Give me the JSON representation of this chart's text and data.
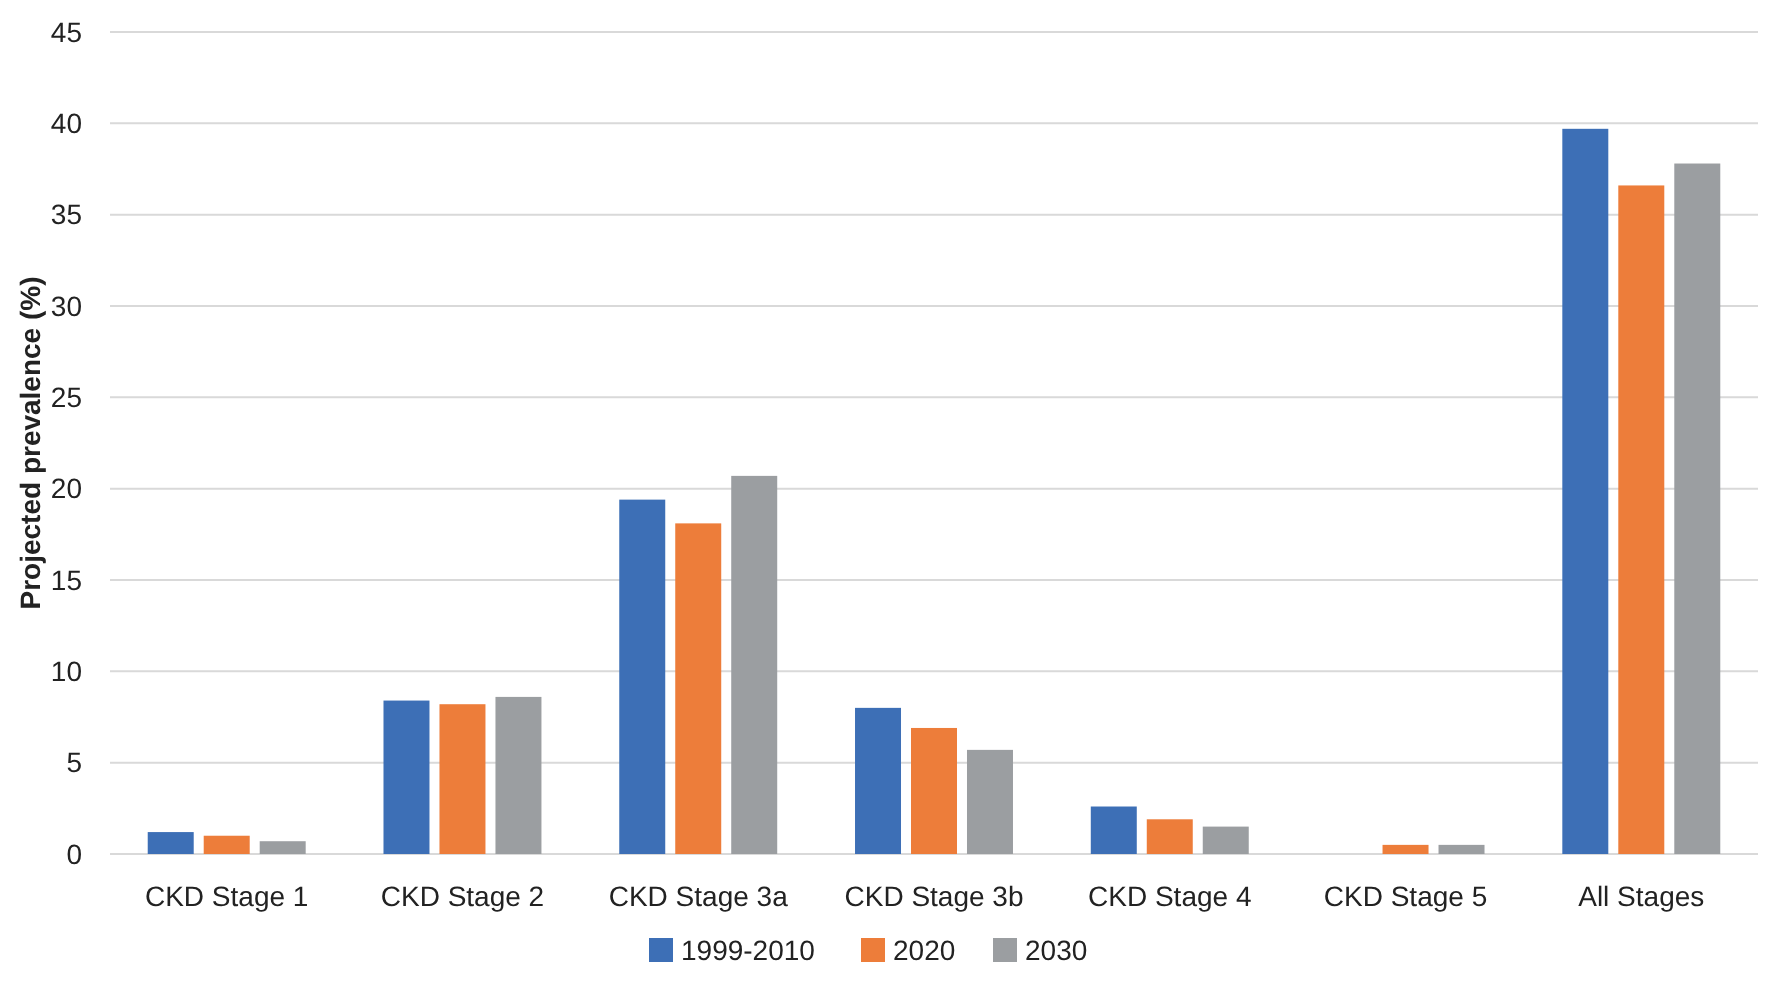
{
  "chart_data": {
    "type": "bar",
    "ylabel": "Projected prevalence (%)",
    "categories": [
      "CKD Stage 1",
      "CKD Stage 2",
      "CKD Stage 3a",
      "CKD Stage 3b",
      "CKD Stage 4",
      "CKD Stage 5",
      "All Stages"
    ],
    "series": [
      {
        "name": "1999-2010",
        "color": "#3d6fb6",
        "values": [
          1.2,
          8.4,
          19.4,
          8.0,
          2.6,
          null,
          39.7
        ]
      },
      {
        "name": "2020",
        "color": "#ed7d3a",
        "values": [
          1.0,
          8.2,
          18.1,
          6.9,
          1.9,
          0.5,
          36.6
        ]
      },
      {
        "name": "2030",
        "color": "#9b9ea1",
        "values": [
          0.7,
          8.6,
          20.7,
          5.7,
          1.5,
          0.5,
          37.8
        ]
      }
    ],
    "ylim": [
      0,
      45
    ],
    "yticks": [
      0,
      5,
      10,
      15,
      20,
      25,
      30,
      35,
      40,
      45
    ],
    "grid": "y",
    "legend": "bottom"
  }
}
